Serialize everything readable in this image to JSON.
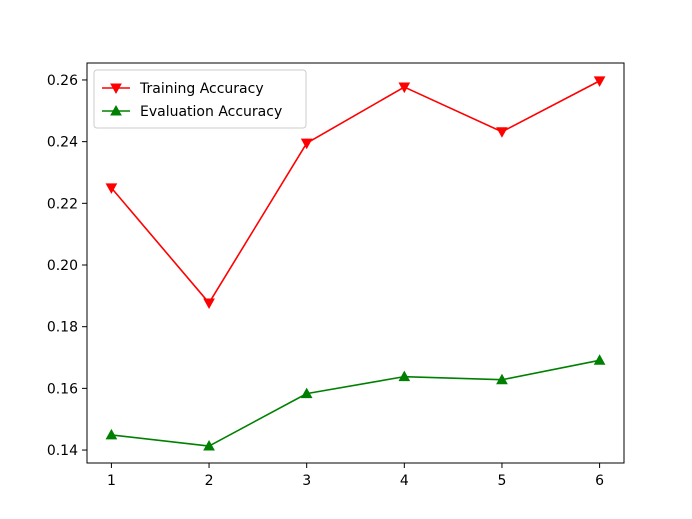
{
  "chart_data": {
    "type": "line",
    "title": "",
    "xlabel": "",
    "ylabel": "",
    "x": [
      1,
      2,
      3,
      4,
      5,
      6
    ],
    "xlim": [
      0.75,
      6.25
    ],
    "ylim": [
      0.1358,
      0.2655
    ],
    "x_ticks": [
      "1",
      "2",
      "3",
      "4",
      "5",
      "6"
    ],
    "y_ticks": [
      "0.14",
      "0.16",
      "0.18",
      "0.20",
      "0.22",
      "0.24",
      "0.26"
    ],
    "x_tick_values": [
      1,
      2,
      3,
      4,
      5,
      6
    ],
    "y_tick_values": [
      0.14,
      0.16,
      0.18,
      0.2,
      0.22,
      0.24,
      0.26
    ],
    "grid": false,
    "legend_position": "top-left",
    "series": [
      {
        "name": "Training Accuracy",
        "color": "#ff0000",
        "marker": "triangle-down",
        "values": [
          0.225,
          0.1877,
          0.2395,
          0.2577,
          0.2432,
          0.2597
        ]
      },
      {
        "name": "Evaluation Accuracy",
        "color": "#008000",
        "marker": "triangle-up",
        "values": [
          0.1449,
          0.1413,
          0.1583,
          0.1638,
          0.1628,
          0.1691
        ]
      }
    ]
  }
}
